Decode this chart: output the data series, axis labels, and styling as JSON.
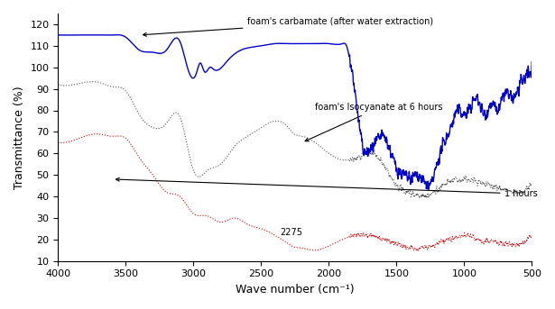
{
  "title": "",
  "xlabel": "Wave number (cm⁻¹)",
  "ylabel": "Transmittance (%)",
  "xlim": [
    4000,
    500
  ],
  "ylim": [
    10,
    125
  ],
  "yticks": [
    10,
    20,
    30,
    40,
    50,
    60,
    70,
    80,
    90,
    100,
    110,
    120
  ],
  "xticks": [
    4000,
    3500,
    3000,
    2500,
    2000,
    1500,
    1000,
    500
  ],
  "background": "#ffffff",
  "annotation1": "foam's carbamate (after water extraction)",
  "annotation2": "foam's Isocyanate at 6 hours",
  "annotation3": "1 hours",
  "annotation4": "2275",
  "line1_color": "#0000cc",
  "line2_color": "#555555",
  "line3_color": "#cc0000"
}
